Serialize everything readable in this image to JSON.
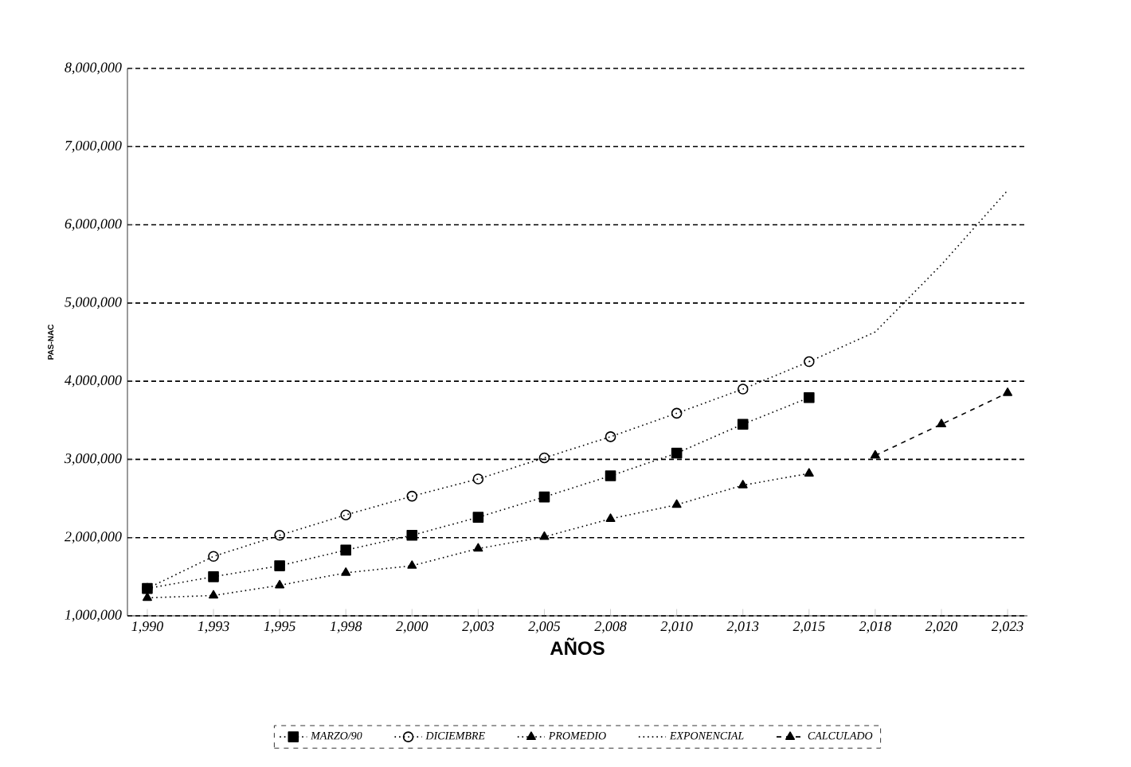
{
  "chart_data": {
    "type": "line",
    "xlabel": "AÑOS",
    "ylabel": "PAS-NAC",
    "categories": [
      "1,990",
      "1,993",
      "1,995",
      "1,998",
      "2,000",
      "2,003",
      "2,005",
      "2,008",
      "2,010",
      "2,013",
      "2,015",
      "2,018",
      "2,020",
      "2,023"
    ],
    "ylim": [
      1000000,
      8000000
    ],
    "yticks": [
      {
        "value": 1000000,
        "label": "1,000,000"
      },
      {
        "value": 2000000,
        "label": "2,000,000"
      },
      {
        "value": 3000000,
        "label": "3,000,000"
      },
      {
        "value": 4000000,
        "label": "4,000,000"
      },
      {
        "value": 5000000,
        "label": "5,000,000"
      },
      {
        "value": 6000000,
        "label": "6,000,000"
      },
      {
        "value": 7000000,
        "label": "7,000,000"
      },
      {
        "value": 8000000,
        "label": "8,000,000"
      }
    ],
    "grid": "y",
    "legend": "bottom",
    "line_style": "dotted",
    "series": [
      {
        "name": "MARZO/90",
        "color": "#000000",
        "marker": "square",
        "values": [
          1350000,
          1500000,
          1640000,
          1840000,
          2030000,
          2260000,
          2520000,
          2790000,
          3080000,
          3450000,
          3790000,
          null,
          null,
          null
        ]
      },
      {
        "name": "DICIEMBRE",
        "color": "#000000",
        "marker": "circle",
        "values": [
          1350000,
          1760000,
          2030000,
          2290000,
          2530000,
          2750000,
          3020000,
          3290000,
          3590000,
          3900000,
          4250000,
          null,
          null,
          null
        ]
      },
      {
        "name": "PROMEDIO",
        "color": "#000000",
        "marker": "triangle",
        "values": [
          1230000,
          1260000,
          1390000,
          1550000,
          1640000,
          1860000,
          2010000,
          2240000,
          2420000,
          2670000,
          2820000,
          null,
          null,
          null
        ]
      },
      {
        "name": "EXPONENCIAL",
        "color": "#000000",
        "marker": "none",
        "values": [
          null,
          null,
          null,
          null,
          null,
          null,
          null,
          null,
          null,
          null,
          4250000,
          4630000,
          5490000,
          6440000
        ]
      },
      {
        "name": "CALCULADO",
        "color": "#000000",
        "marker": "triangle",
        "line_style": "dashed",
        "values": [
          null,
          null,
          null,
          null,
          null,
          null,
          null,
          null,
          null,
          null,
          null,
          3050000,
          3450000,
          3850000
        ]
      }
    ]
  }
}
